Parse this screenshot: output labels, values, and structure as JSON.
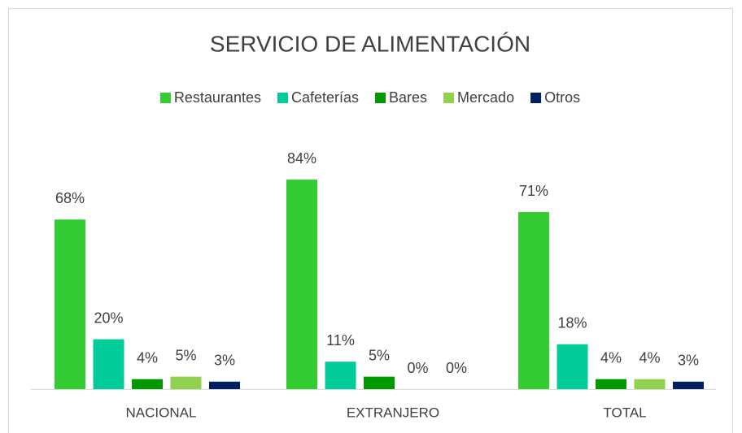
{
  "chart_data": {
    "type": "bar",
    "title": "SERVICIO DE ALIMENTACIÓN",
    "categories": [
      "NACIONAL",
      "EXTRANJERO",
      "TOTAL"
    ],
    "series": [
      {
        "name": "Restaurantes",
        "color": "#33cc33",
        "values": [
          68,
          84,
          71
        ],
        "value_labels": [
          "68%",
          "84%",
          "71%"
        ]
      },
      {
        "name": "Cafeterías",
        "color": "#00cc99",
        "values": [
          20,
          11,
          18
        ],
        "value_labels": [
          "20%",
          "11%",
          "18%"
        ]
      },
      {
        "name": "Bares",
        "color": "#009900",
        "values": [
          4,
          5,
          4
        ],
        "value_labels": [
          "4%",
          "5%",
          "4%"
        ]
      },
      {
        "name": "Mercado",
        "color": "#92d050",
        "values": [
          5,
          0,
          4
        ],
        "value_labels": [
          "5%",
          "0%",
          "4%"
        ]
      },
      {
        "name": "Otros",
        "color": "#002060",
        "values": [
          3,
          0,
          3
        ],
        "value_labels": [
          "3%",
          "0%",
          "3%"
        ]
      }
    ],
    "legend": "top"
  }
}
